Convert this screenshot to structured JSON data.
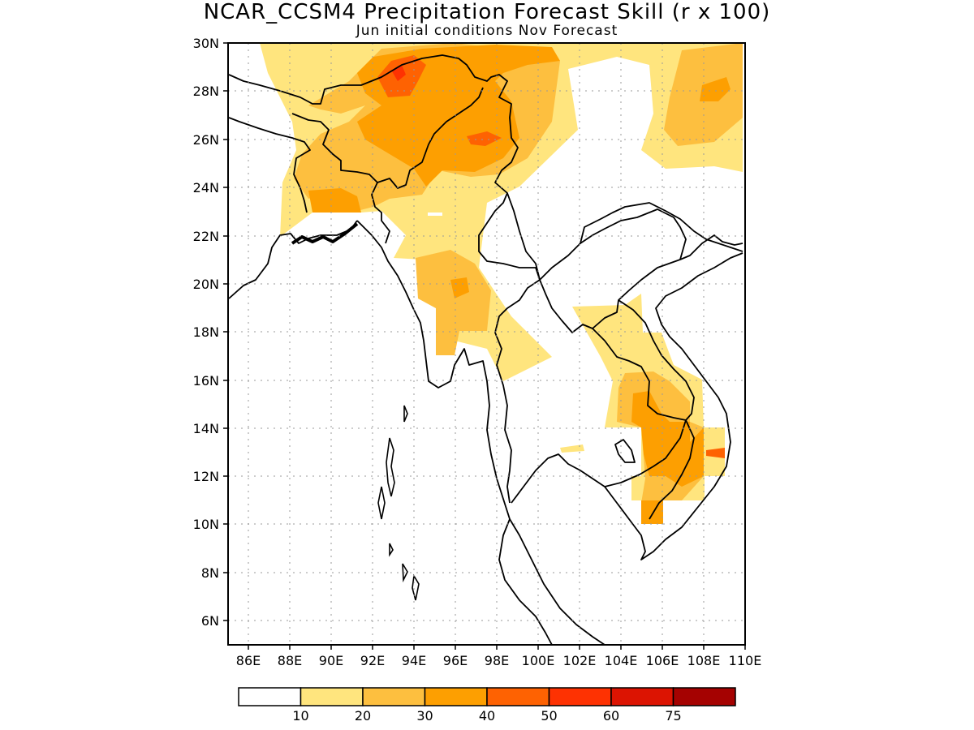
{
  "title": "NCAR_CCSM4 Precipitation Forecast Skill (r x 100)",
  "subtitle": "Jun initial conditions  Nov Forecast",
  "map": {
    "lon_range": [
      85,
      110
    ],
    "lat_range": [
      5,
      30
    ],
    "lon_ticks": [
      "86E",
      "88E",
      "90E",
      "92E",
      "94E",
      "96E",
      "98E",
      "100E",
      "102E",
      "104E",
      "106E",
      "108E",
      "110E"
    ],
    "lat_ticks": [
      "30N",
      "28N",
      "26N",
      "24N",
      "22N",
      "20N",
      "18N",
      "16N",
      "14N",
      "12N",
      "10N",
      "8N",
      "6N"
    ],
    "grid": "dotted"
  },
  "legend": {
    "placement": "bottom",
    "labels": [
      "10",
      "20",
      "30",
      "40",
      "50",
      "60",
      "75"
    ],
    "colors": [
      "#ffffff",
      "#ffe57e",
      "#fdbf3f",
      "#fd9f01",
      "#fe6202",
      "#fe3202",
      "#dc1402",
      "#a50201"
    ]
  },
  "colors": {
    "c1": "#ffe57e",
    "c2": "#fdbf3f",
    "c3": "#fd9f01",
    "c4": "#fe6202",
    "c5": "#fe3202"
  }
}
